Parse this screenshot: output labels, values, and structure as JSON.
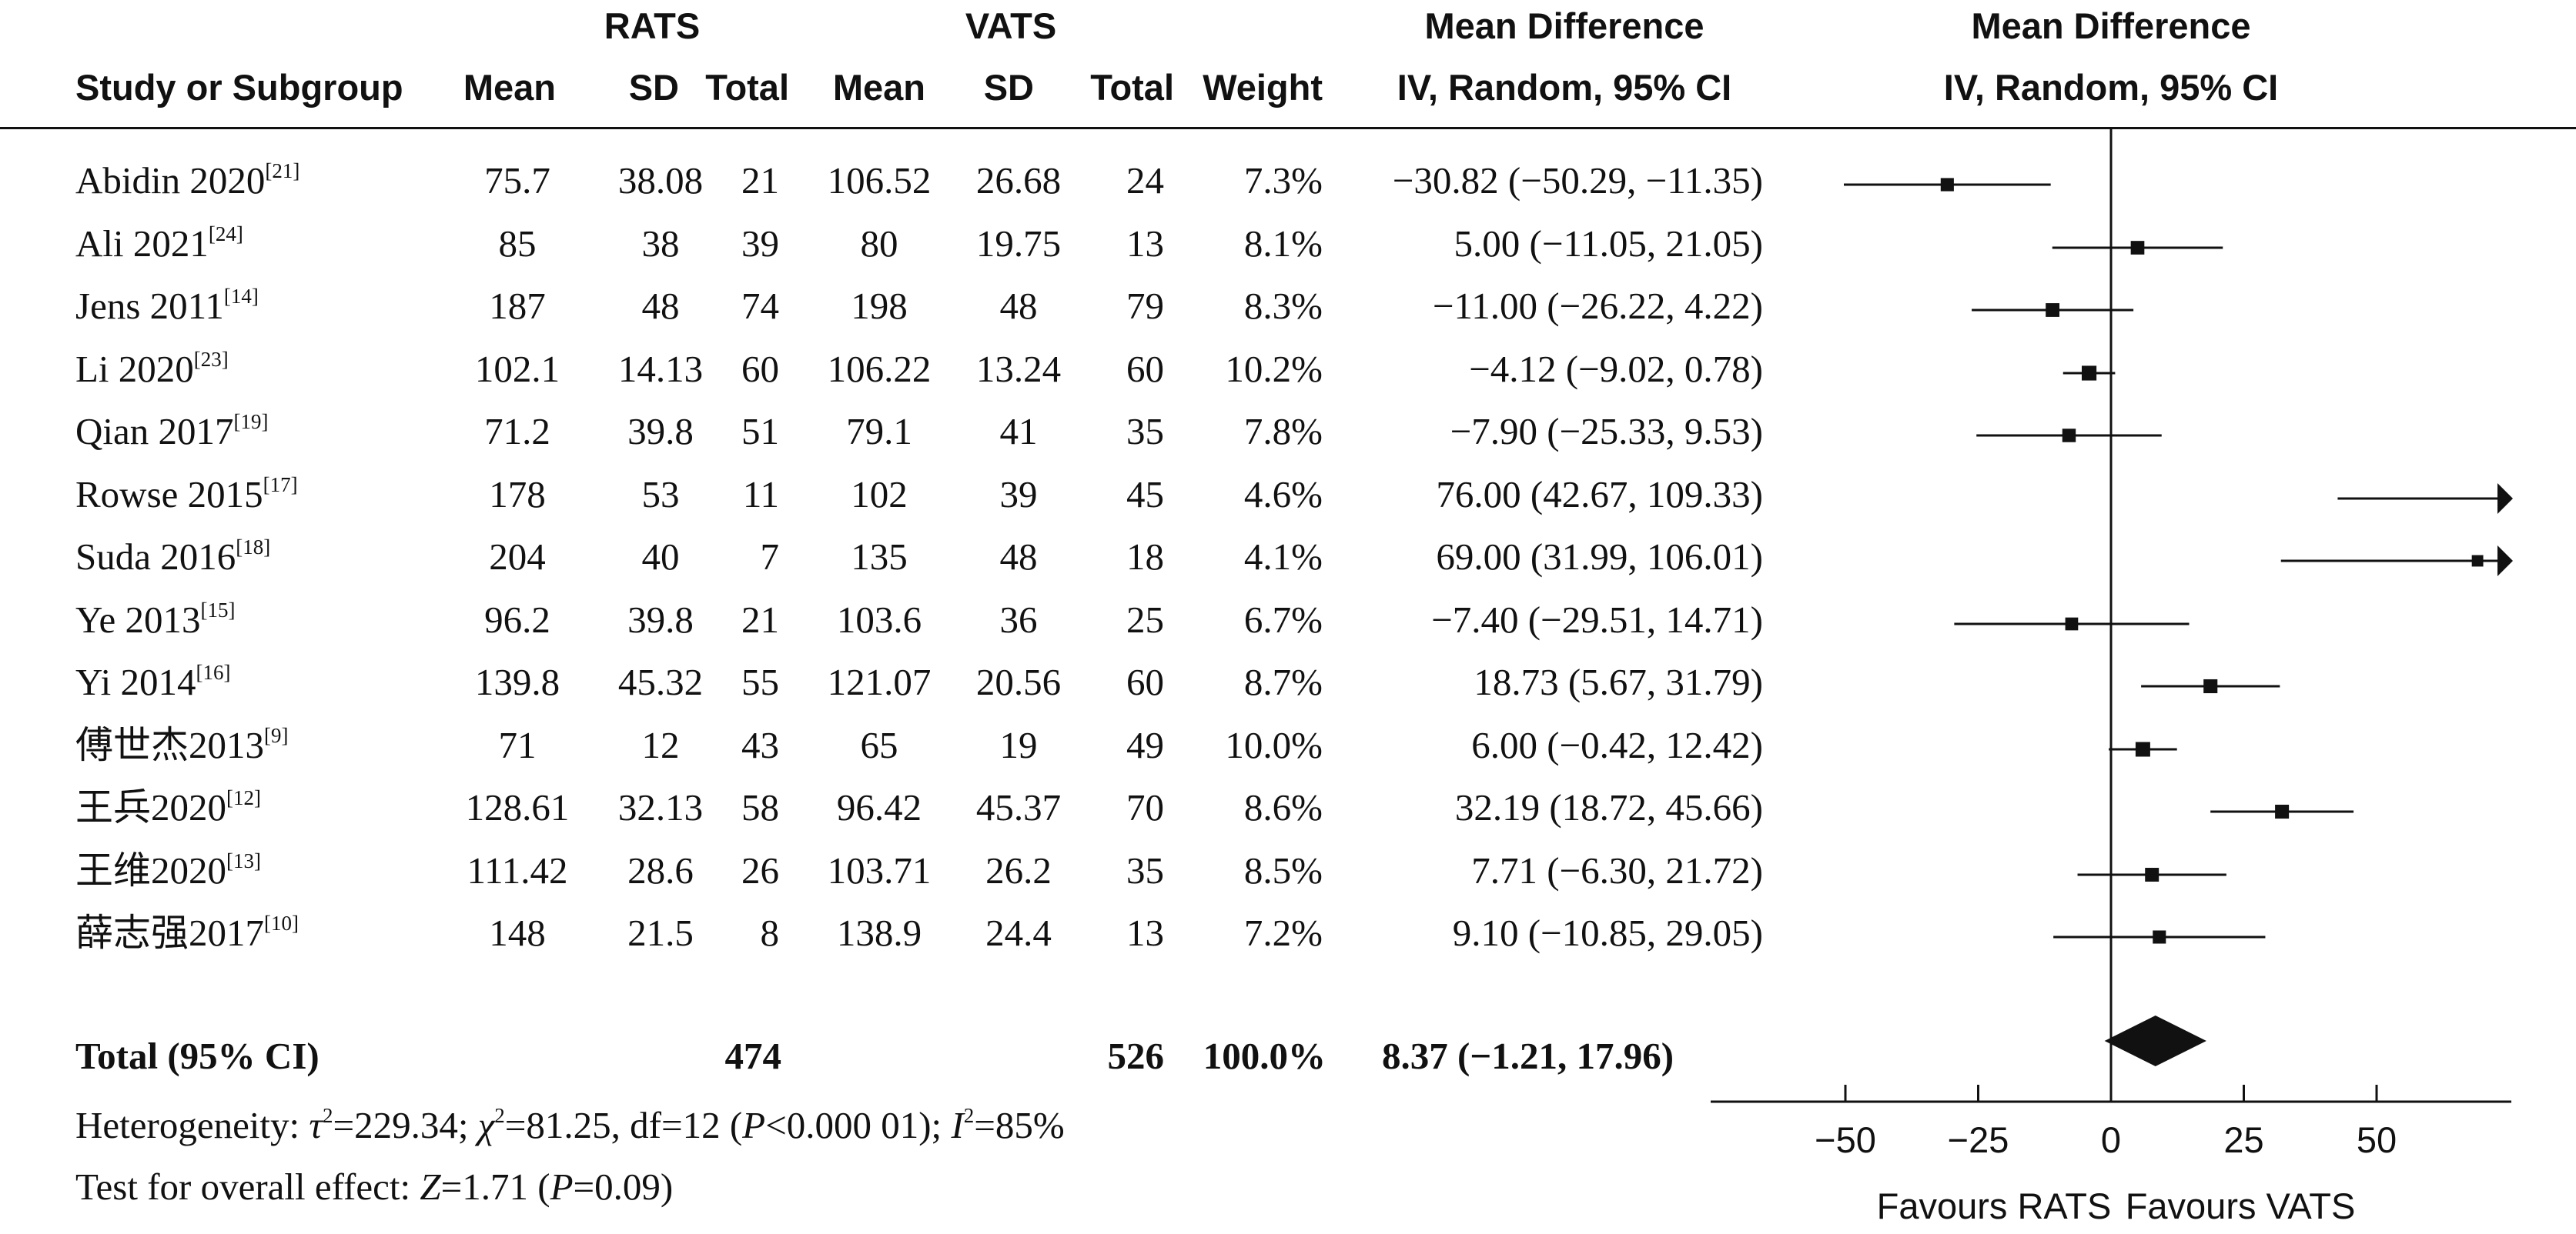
{
  "header": {
    "group1": "RATS",
    "group2": "VATS",
    "effect_title_left": "Mean Difference",
    "effect_title_right": "Mean Difference",
    "col_study": "Study or Subgroup",
    "col_mean1": "Mean",
    "col_sd1": "SD",
    "col_total1": "Total",
    "col_mean2": "Mean",
    "col_sd2": "SD",
    "col_total2": "Total",
    "col_weight": "Weight",
    "method_left": "IV, Random, 95% CI",
    "method_right": "IV, Random, 95% CI"
  },
  "studies": [
    {
      "name": "Abidin 2020",
      "ref": "[21]",
      "mean1": "75.7",
      "sd1": "38.08",
      "total1": "21",
      "mean2": "106.52",
      "sd2": "26.68",
      "total2": "24",
      "weight": "7.3%",
      "ci_text": "−30.82 (−50.29, −11.35)"
    },
    {
      "name": "Ali 2021",
      "ref": "[24]",
      "mean1": "85",
      "sd1": "38",
      "total1": "39",
      "mean2": "80",
      "sd2": "19.75",
      "total2": "13",
      "weight": "8.1%",
      "ci_text": "5.00 (−11.05, 21.05)"
    },
    {
      "name": "Jens 2011",
      "ref": "[14]",
      "mean1": "187",
      "sd1": "48",
      "total1": "74",
      "mean2": "198",
      "sd2": "48",
      "total2": "79",
      "weight": "8.3%",
      "ci_text": "−11.00 (−26.22, 4.22)"
    },
    {
      "name": "Li 2020",
      "ref": "[23]",
      "mean1": "102.1",
      "sd1": "14.13",
      "total1": "60",
      "mean2": "106.22",
      "sd2": "13.24",
      "total2": "60",
      "weight": "10.2%",
      "ci_text": "−4.12 (−9.02, 0.78)"
    },
    {
      "name": "Qian 2017",
      "ref": "[19]",
      "mean1": "71.2",
      "sd1": "39.8",
      "total1": "51",
      "mean2": "79.1",
      "sd2": "41",
      "total2": "35",
      "weight": "7.8%",
      "ci_text": "−7.90 (−25.33, 9.53)"
    },
    {
      "name": "Rowse 2015",
      "ref": "[17]",
      "mean1": "178",
      "sd1": "53",
      "total1": "11",
      "mean2": "102",
      "sd2": "39",
      "total2": "45",
      "weight": "4.6%",
      "ci_text": "76.00 (42.67, 109.33)"
    },
    {
      "name": "Suda 2016",
      "ref": "[18]",
      "mean1": "204",
      "sd1": "40",
      "total1": "7",
      "mean2": "135",
      "sd2": "48",
      "total2": "18",
      "weight": "4.1%",
      "ci_text": "69.00 (31.99, 106.01)"
    },
    {
      "name": "Ye 2013",
      "ref": "[15]",
      "mean1": "96.2",
      "sd1": "39.8",
      "total1": "21",
      "mean2": "103.6",
      "sd2": "36",
      "total2": "25",
      "weight": "6.7%",
      "ci_text": "−7.40 (−29.51, 14.71)"
    },
    {
      "name": "Yi 2014",
      "ref": "[16]",
      "mean1": "139.8",
      "sd1": "45.32",
      "total1": "55",
      "mean2": "121.07",
      "sd2": "20.56",
      "total2": "60",
      "weight": "8.7%",
      "ci_text": "18.73 (5.67, 31.79)"
    },
    {
      "name": "傅世杰2013",
      "ref": "[9]",
      "mean1": "71",
      "sd1": "12",
      "total1": "43",
      "mean2": "65",
      "sd2": "19",
      "total2": "49",
      "weight": "10.0%",
      "ci_text": "6.00 (−0.42, 12.42)"
    },
    {
      "name": "王兵2020",
      "ref": "[12]",
      "mean1": "128.61",
      "sd1": "32.13",
      "total1": "58",
      "mean2": "96.42",
      "sd2": "45.37",
      "total2": "70",
      "weight": "8.6%",
      "ci_text": "32.19 (18.72, 45.66)"
    },
    {
      "name": "王维2020",
      "ref": "[13]",
      "mean1": "111.42",
      "sd1": "28.6",
      "total1": "26",
      "mean2": "103.71",
      "sd2": "26.2",
      "total2": "35",
      "weight": "8.5%",
      "ci_text": "7.71 (−6.30, 21.72)"
    },
    {
      "name": "薛志强2017",
      "ref": "[10]",
      "mean1": "148",
      "sd1": "21.5",
      "total1": "8",
      "mean2": "138.9",
      "sd2": "24.4",
      "total2": "13",
      "weight": "7.2%",
      "ci_text": "9.10 (−10.85, 29.05)"
    }
  ],
  "total": {
    "label": "Total (95% CI)",
    "total1": "474",
    "total2": "526",
    "weight": "100.0%",
    "ci_text": "8.37 (−1.21, 17.96)"
  },
  "footer": {
    "heterogeneity_prefix": "Heterogeneity: ",
    "tau_sym": "τ",
    "tau_rest": "=229.34; ",
    "chi_sym": "χ",
    "chi_rest": "=81.25, df=12 (",
    "p_sym": "P",
    "p_rest": "<0.000 01); ",
    "i_sym": "I",
    "i_rest": "=85%",
    "sq": "2",
    "overall_prefix": "Test for overall effect: ",
    "z_sym": "Z",
    "z_rest": "=1.71 (",
    "p2_sym": "P",
    "p2_rest": "=0.09)"
  },
  "chart_data": {
    "type": "forest",
    "measure": "Mean Difference (IV, Random, 95% CI)",
    "studies": [
      {
        "name": "Abidin 2020",
        "md": -30.82,
        "lo": -50.29,
        "hi": -11.35,
        "weight": 7.3
      },
      {
        "name": "Ali 2021",
        "md": 5.0,
        "lo": -11.05,
        "hi": 21.05,
        "weight": 8.1
      },
      {
        "name": "Jens 2011",
        "md": -11.0,
        "lo": -26.22,
        "hi": 4.22,
        "weight": 8.3
      },
      {
        "name": "Li 2020",
        "md": -4.12,
        "lo": -9.02,
        "hi": 0.78,
        "weight": 10.2
      },
      {
        "name": "Qian 2017",
        "md": -7.9,
        "lo": -25.33,
        "hi": 9.53,
        "weight": 7.8
      },
      {
        "name": "Rowse 2015",
        "md": 76.0,
        "lo": 42.67,
        "hi": 109.33,
        "weight": 4.6
      },
      {
        "name": "Suda 2016",
        "md": 69.0,
        "lo": 31.99,
        "hi": 106.01,
        "weight": 4.1
      },
      {
        "name": "Ye 2013",
        "md": -7.4,
        "lo": -29.51,
        "hi": 14.71,
        "weight": 6.7
      },
      {
        "name": "Yi 2014",
        "md": 18.73,
        "lo": 5.67,
        "hi": 31.79,
        "weight": 8.7
      },
      {
        "name": "傅世杰2013",
        "md": 6.0,
        "lo": -0.42,
        "hi": 12.42,
        "weight": 10.0
      },
      {
        "name": "王兵2020",
        "md": 32.19,
        "lo": 18.72,
        "hi": 45.66,
        "weight": 8.6
      },
      {
        "name": "王维2020",
        "md": 7.71,
        "lo": -6.3,
        "hi": 21.72,
        "weight": 8.5
      },
      {
        "name": "薛志强2017",
        "md": 9.1,
        "lo": -10.85,
        "hi": 29.05,
        "weight": 7.2
      }
    ],
    "pooled": {
      "md": 8.37,
      "lo": -1.21,
      "hi": 17.96
    },
    "xlim": [
      -75,
      75
    ],
    "xticks": [
      -50,
      -25,
      0,
      25,
      50
    ],
    "xtick_labels": [
      "−50",
      "−25",
      "0",
      "25",
      "50"
    ],
    "favours_left": "Favours RATS",
    "favours_right": "Favours VATS"
  }
}
